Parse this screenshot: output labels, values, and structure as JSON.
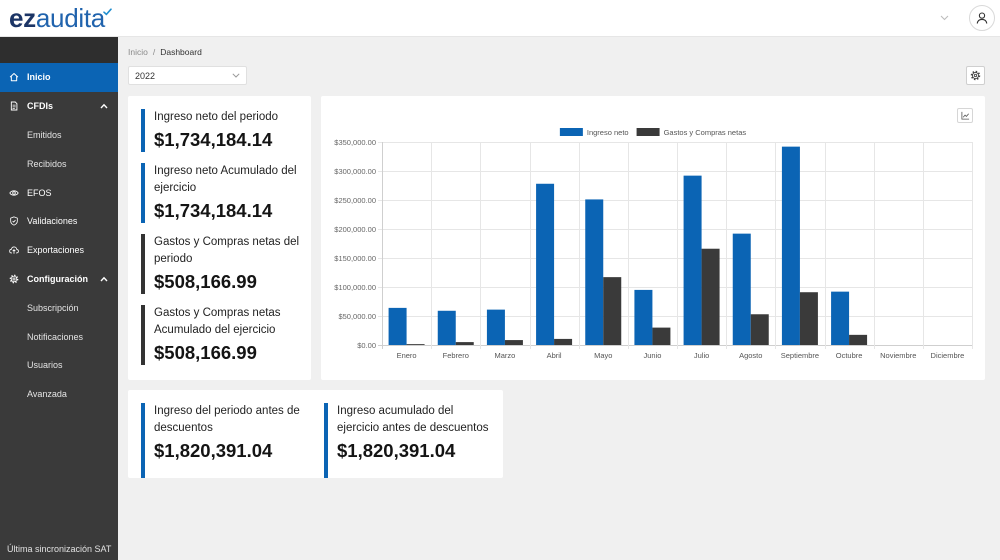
{
  "app": {
    "logo_part1": "ez",
    "logo_part2": "audita",
    "logo_icon": "check-icon"
  },
  "header": {
    "menu_icon": "chevron-down-icon",
    "avatar_icon": "user-icon"
  },
  "sidebar": {
    "items": [
      {
        "label": "Inicio",
        "icon": "home-icon",
        "active": true
      },
      {
        "label": "CFDIs",
        "icon": "document-icon",
        "expanded": true,
        "toggle_icon": "chevron-up-icon",
        "children": [
          {
            "label": "Emitidos"
          },
          {
            "label": "Recibidos"
          }
        ]
      },
      {
        "label": "EFOS",
        "icon": "eye-icon"
      },
      {
        "label": "Validaciones",
        "icon": "shield-icon"
      },
      {
        "label": "Exportaciones",
        "icon": "cloud-upload-icon"
      },
      {
        "label": "Configuración",
        "icon": "gear-icon",
        "expanded": true,
        "toggle_icon": "chevron-up-icon",
        "children": [
          {
            "label": "Subscripción"
          },
          {
            "label": "Notificaciones"
          },
          {
            "label": "Usuarios"
          },
          {
            "label": "Avanzada"
          }
        ]
      }
    ],
    "footer": "Última sincronización SAT"
  },
  "breadcrumb": {
    "home": "Inicio",
    "separator": "/",
    "current": "Dashboard"
  },
  "toolbar": {
    "year_select_value": "2022",
    "year_select_icon": "chevron-down-icon",
    "settings_icon": "gear-icon"
  },
  "summary_card": {
    "metrics": [
      {
        "label": "Ingreso neto del periodo",
        "value": "$1,734,184.14",
        "color": "#0b64b4"
      },
      {
        "label": "Ingreso neto Acumulado del ejercicio",
        "value": "$1,734,184.14",
        "color": "#0b64b4"
      },
      {
        "label": "Gastos y Compras netas del periodo",
        "value": "$508,166.99",
        "color": "#333333"
      },
      {
        "label": "Gastos y Compras netas Acumulado del ejercicio",
        "value": "$508,166.99",
        "color": "#333333"
      }
    ]
  },
  "chart_card": {
    "toggle_icon": "line-chart-icon"
  },
  "chart_data": {
    "type": "bar",
    "categories": [
      "Enero",
      "Febrero",
      "Marzo",
      "Abril",
      "Mayo",
      "Junio",
      "Julio",
      "Agosto",
      "Septiembre",
      "Octubre",
      "Noviembre",
      "Diciembre"
    ],
    "series": [
      {
        "name": "Ingreso neto",
        "color": "#0b64b4",
        "values": [
          64000,
          59000,
          61000,
          278000,
          251000,
          95000,
          292000,
          192000,
          342000,
          92000,
          0,
          0
        ]
      },
      {
        "name": "Gastos y Compras netas",
        "color": "#3a3a3a",
        "values": [
          1500,
          5000,
          8500,
          10500,
          117000,
          30000,
          166000,
          53000,
          91000,
          17500,
          0,
          0
        ]
      }
    ],
    "ylim": [
      0,
      350000
    ],
    "yticks": [
      0,
      50000,
      100000,
      150000,
      200000,
      250000,
      300000,
      350000
    ],
    "grid": true,
    "legend": "top-center"
  },
  "bottom_card": {
    "metrics": [
      {
        "label": "Ingreso del periodo antes de descuentos",
        "value": "$1,820,391.04",
        "color": "#0b64b4"
      },
      {
        "label": "Ingreso acumulado del ejercicio antes de descuentos",
        "value": "$1,820,391.04",
        "color": "#0b64b4"
      }
    ]
  },
  "colors": {
    "primary": "#0b64b4",
    "dark": "#333333",
    "sidebar": "#3a3a3a",
    "background": "#f0f0f0"
  }
}
